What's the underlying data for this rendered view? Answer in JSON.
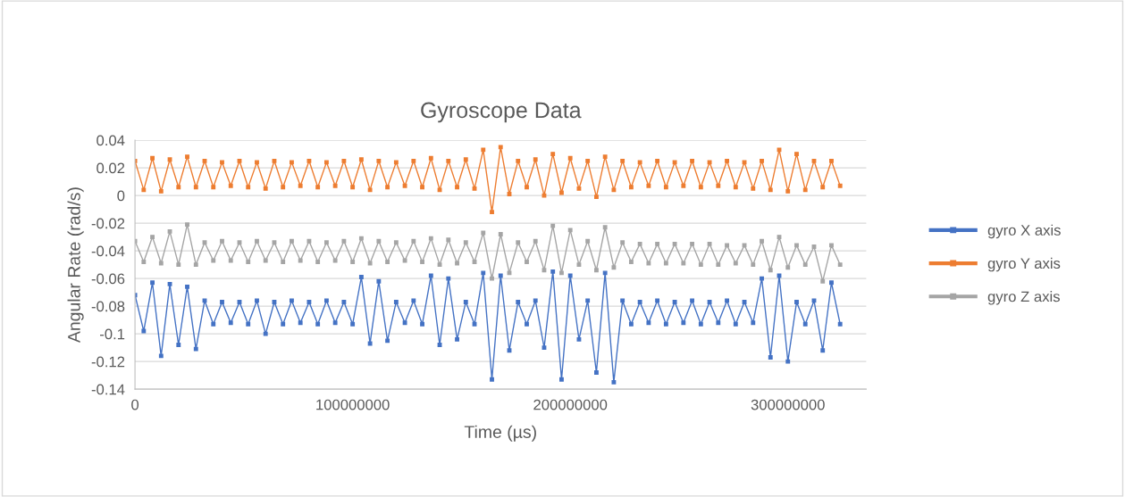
{
  "chart_data": {
    "type": "line",
    "title": "Gyroscope Data",
    "xlabel": "Time (µs)",
    "ylabel": "Angular Rate (rad/s)",
    "x": [
      0,
      4000000,
      8000000,
      12000000,
      16000000,
      20000000,
      24000000,
      28000000,
      32000000,
      36000000,
      40000000,
      44000000,
      48000000,
      52000000,
      56000000,
      60000000,
      64000000,
      68000000,
      72000000,
      76000000,
      80000000,
      84000000,
      88000000,
      92000000,
      96000000,
      100000000,
      104000000,
      108000000,
      112000000,
      116000000,
      120000000,
      124000000,
      128000000,
      132000000,
      136000000,
      140000000,
      144000000,
      148000000,
      152000000,
      156000000,
      160000000,
      164000000,
      168000000,
      172000000,
      176000000,
      180000000,
      184000000,
      188000000,
      192000000,
      196000000,
      200000000,
      204000000,
      208000000,
      212000000,
      216000000,
      220000000,
      224000000,
      228000000,
      232000000,
      236000000,
      240000000,
      244000000,
      248000000,
      252000000,
      256000000,
      260000000,
      264000000,
      268000000,
      272000000,
      276000000,
      280000000,
      284000000,
      288000000,
      292000000,
      296000000,
      300000000,
      304000000,
      308000000,
      312000000,
      316000000,
      320000000,
      324000000
    ],
    "series": [
      {
        "name": "gyro X axis",
        "color": "#4472c4",
        "values": [
          -0.072,
          -0.098,
          -0.063,
          -0.116,
          -0.064,
          -0.108,
          -0.066,
          -0.111,
          -0.076,
          -0.093,
          -0.077,
          -0.092,
          -0.077,
          -0.093,
          -0.076,
          -0.1,
          -0.077,
          -0.093,
          -0.076,
          -0.092,
          -0.077,
          -0.093,
          -0.076,
          -0.092,
          -0.077,
          -0.093,
          -0.059,
          -0.107,
          -0.062,
          -0.105,
          -0.077,
          -0.092,
          -0.076,
          -0.093,
          -0.058,
          -0.108,
          -0.06,
          -0.104,
          -0.077,
          -0.093,
          -0.056,
          -0.133,
          -0.058,
          -0.112,
          -0.077,
          -0.093,
          -0.076,
          -0.11,
          -0.055,
          -0.133,
          -0.058,
          -0.104,
          -0.076,
          -0.128,
          -0.056,
          -0.135,
          -0.076,
          -0.093,
          -0.077,
          -0.092,
          -0.076,
          -0.093,
          -0.077,
          -0.092,
          -0.076,
          -0.093,
          -0.077,
          -0.092,
          -0.076,
          -0.093,
          -0.077,
          -0.092,
          -0.06,
          -0.117,
          -0.058,
          -0.12,
          -0.077,
          -0.093,
          -0.076,
          -0.112,
          -0.063,
          -0.093
        ]
      },
      {
        "name": "gyro Y axis",
        "color": "#ed7d31",
        "values": [
          0.025,
          0.004,
          0.027,
          0.003,
          0.026,
          0.006,
          0.028,
          0.006,
          0.025,
          0.006,
          0.024,
          0.007,
          0.025,
          0.006,
          0.024,
          0.005,
          0.025,
          0.006,
          0.024,
          0.007,
          0.025,
          0.006,
          0.024,
          0.007,
          0.025,
          0.006,
          0.026,
          0.004,
          0.025,
          0.006,
          0.024,
          0.007,
          0.025,
          0.006,
          0.027,
          0.004,
          0.025,
          0.006,
          0.026,
          0.005,
          0.033,
          -0.012,
          0.035,
          0.001,
          0.025,
          0.006,
          0.026,
          0.0,
          0.03,
          0.002,
          0.027,
          0.005,
          0.025,
          -0.001,
          0.028,
          0.004,
          0.025,
          0.006,
          0.024,
          0.007,
          0.025,
          0.006,
          0.024,
          0.007,
          0.025,
          0.006,
          0.024,
          0.007,
          0.025,
          0.006,
          0.024,
          0.005,
          0.025,
          0.004,
          0.033,
          0.003,
          0.03,
          0.004,
          0.025,
          0.006,
          0.025,
          0.007
        ]
      },
      {
        "name": "gyro Z axis",
        "color": "#a5a5a5",
        "values": [
          -0.033,
          -0.048,
          -0.03,
          -0.049,
          -0.026,
          -0.05,
          -0.021,
          -0.05,
          -0.034,
          -0.047,
          -0.033,
          -0.047,
          -0.034,
          -0.048,
          -0.033,
          -0.047,
          -0.034,
          -0.048,
          -0.033,
          -0.047,
          -0.033,
          -0.048,
          -0.034,
          -0.047,
          -0.033,
          -0.048,
          -0.031,
          -0.049,
          -0.033,
          -0.048,
          -0.034,
          -0.047,
          -0.033,
          -0.048,
          -0.031,
          -0.05,
          -0.032,
          -0.049,
          -0.034,
          -0.048,
          -0.027,
          -0.06,
          -0.028,
          -0.056,
          -0.034,
          -0.048,
          -0.033,
          -0.054,
          -0.022,
          -0.056,
          -0.025,
          -0.05,
          -0.033,
          -0.054,
          -0.023,
          -0.052,
          -0.034,
          -0.048,
          -0.035,
          -0.049,
          -0.035,
          -0.049,
          -0.035,
          -0.049,
          -0.035,
          -0.05,
          -0.035,
          -0.05,
          -0.036,
          -0.049,
          -0.036,
          -0.05,
          -0.033,
          -0.054,
          -0.03,
          -0.052,
          -0.036,
          -0.05,
          -0.037,
          -0.062,
          -0.036,
          -0.05
        ]
      }
    ],
    "xlim": [
      0,
      336000000
    ],
    "xticks": [
      0,
      100000000,
      200000000,
      300000000
    ],
    "ylim": [
      -0.14,
      0.04
    ],
    "yticks": [
      {
        "value": -0.14,
        "label": "-0.14"
      },
      {
        "value": -0.12,
        "label": "-0.12"
      },
      {
        "value": -0.1,
        "label": "-0.1"
      },
      {
        "value": -0.08,
        "label": "-0.08"
      },
      {
        "value": -0.06,
        "label": "-0.06"
      },
      {
        "value": -0.04,
        "label": "-0.04"
      },
      {
        "value": -0.02,
        "label": "-0.02"
      },
      0,
      {
        "value": 0.02,
        "label": "0.02"
      },
      {
        "value": 0.04,
        "label": "0.04"
      }
    ],
    "grid": "y",
    "legend": "right",
    "marker": "square",
    "line_style": "solid"
  }
}
